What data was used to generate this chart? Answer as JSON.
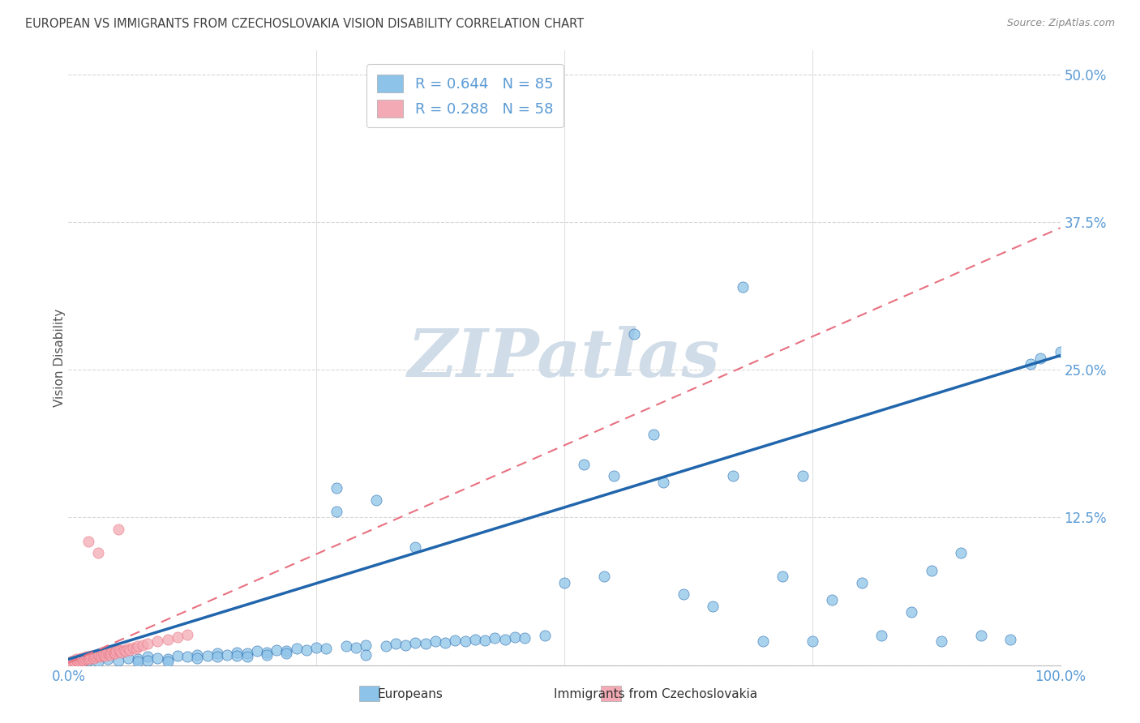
{
  "title": "EUROPEAN VS IMMIGRANTS FROM CZECHOSLOVAKIA VISION DISABILITY CORRELATION CHART",
  "source": "Source: ZipAtlas.com",
  "ylabel": "Vision Disability",
  "xlim": [
    0.0,
    1.0
  ],
  "ylim": [
    0.0,
    0.52
  ],
  "ytick_vals": [
    0.0,
    0.125,
    0.25,
    0.375,
    0.5
  ],
  "ytick_labels": [
    "",
    "12.5%",
    "25.0%",
    "37.5%",
    "50.0%"
  ],
  "xtick_vals": [
    0.0,
    0.25,
    0.5,
    0.75,
    1.0
  ],
  "xtick_labels": [
    "0.0%",
    "",
    "",
    "",
    "100.0%"
  ],
  "legend_r1": "R = 0.644",
  "legend_n1": "N = 85",
  "legend_r2": "R = 0.288",
  "legend_n2": "N = 58",
  "blue_scatter_color": "#8dc3e8",
  "blue_line_color": "#2166ac",
  "pink_scatter_color": "#f4aab4",
  "pink_line_color": "#e87080",
  "axis_color": "#5b9bd5",
  "grid_color": "#d8d8d8",
  "title_color": "#404040",
  "source_color": "#888888",
  "watermark_text": "ZIPatlas",
  "watermark_color": "#d0dce8",
  "blue_trend": [
    0.0,
    0.005,
    1.0,
    0.262
  ],
  "pink_trend": [
    0.0,
    0.002,
    1.0,
    0.37
  ],
  "blue_x": [
    0.02,
    0.03,
    0.04,
    0.05,
    0.06,
    0.07,
    0.07,
    0.08,
    0.08,
    0.09,
    0.1,
    0.1,
    0.11,
    0.12,
    0.13,
    0.13,
    0.14,
    0.15,
    0.15,
    0.16,
    0.17,
    0.17,
    0.18,
    0.18,
    0.19,
    0.2,
    0.2,
    0.21,
    0.22,
    0.22,
    0.23,
    0.24,
    0.25,
    0.26,
    0.27,
    0.28,
    0.29,
    0.3,
    0.31,
    0.32,
    0.33,
    0.34,
    0.35,
    0.35,
    0.36,
    0.37,
    0.38,
    0.39,
    0.4,
    0.41,
    0.42,
    0.43,
    0.44,
    0.45,
    0.46,
    0.48,
    0.5,
    0.52,
    0.54,
    0.55,
    0.57,
    0.59,
    0.6,
    0.62,
    0.65,
    0.67,
    0.68,
    0.7,
    0.72,
    0.74,
    0.75,
    0.77,
    0.8,
    0.82,
    0.85,
    0.87,
    0.88,
    0.9,
    0.92,
    0.95,
    0.97,
    0.98,
    1.0,
    0.3,
    0.27
  ],
  "blue_y": [
    0.004,
    0.003,
    0.005,
    0.004,
    0.006,
    0.005,
    0.003,
    0.007,
    0.004,
    0.006,
    0.005,
    0.003,
    0.008,
    0.007,
    0.009,
    0.006,
    0.008,
    0.01,
    0.007,
    0.009,
    0.011,
    0.008,
    0.01,
    0.007,
    0.012,
    0.011,
    0.009,
    0.013,
    0.012,
    0.01,
    0.014,
    0.013,
    0.015,
    0.014,
    0.13,
    0.016,
    0.015,
    0.017,
    0.14,
    0.016,
    0.018,
    0.017,
    0.019,
    0.1,
    0.018,
    0.02,
    0.019,
    0.021,
    0.02,
    0.022,
    0.021,
    0.023,
    0.022,
    0.024,
    0.023,
    0.025,
    0.07,
    0.17,
    0.075,
    0.16,
    0.28,
    0.195,
    0.155,
    0.06,
    0.05,
    0.16,
    0.32,
    0.02,
    0.075,
    0.16,
    0.02,
    0.055,
    0.07,
    0.025,
    0.045,
    0.08,
    0.02,
    0.095,
    0.025,
    0.022,
    0.255,
    0.26,
    0.265,
    0.009,
    0.15
  ],
  "pink_x": [
    0.003,
    0.005,
    0.006,
    0.008,
    0.009,
    0.01,
    0.011,
    0.012,
    0.013,
    0.014,
    0.015,
    0.016,
    0.017,
    0.018,
    0.019,
    0.02,
    0.021,
    0.022,
    0.023,
    0.025,
    0.026,
    0.027,
    0.028,
    0.03,
    0.031,
    0.032,
    0.033,
    0.035,
    0.036,
    0.037,
    0.038,
    0.04,
    0.041,
    0.042,
    0.043,
    0.045,
    0.046,
    0.047,
    0.048,
    0.05,
    0.052,
    0.054,
    0.056,
    0.058,
    0.06,
    0.062,
    0.065,
    0.068,
    0.07,
    0.075,
    0.08,
    0.09,
    0.1,
    0.11,
    0.12,
    0.05,
    0.03,
    0.02
  ],
  "pink_y": [
    0.003,
    0.004,
    0.003,
    0.005,
    0.004,
    0.003,
    0.005,
    0.004,
    0.006,
    0.005,
    0.004,
    0.006,
    0.005,
    0.007,
    0.006,
    0.005,
    0.007,
    0.006,
    0.008,
    0.007,
    0.006,
    0.008,
    0.007,
    0.009,
    0.008,
    0.007,
    0.009,
    0.01,
    0.009,
    0.008,
    0.01,
    0.011,
    0.01,
    0.009,
    0.011,
    0.012,
    0.011,
    0.01,
    0.012,
    0.013,
    0.012,
    0.011,
    0.013,
    0.012,
    0.014,
    0.013,
    0.015,
    0.014,
    0.016,
    0.017,
    0.018,
    0.02,
    0.022,
    0.024,
    0.026,
    0.115,
    0.095,
    0.105
  ]
}
